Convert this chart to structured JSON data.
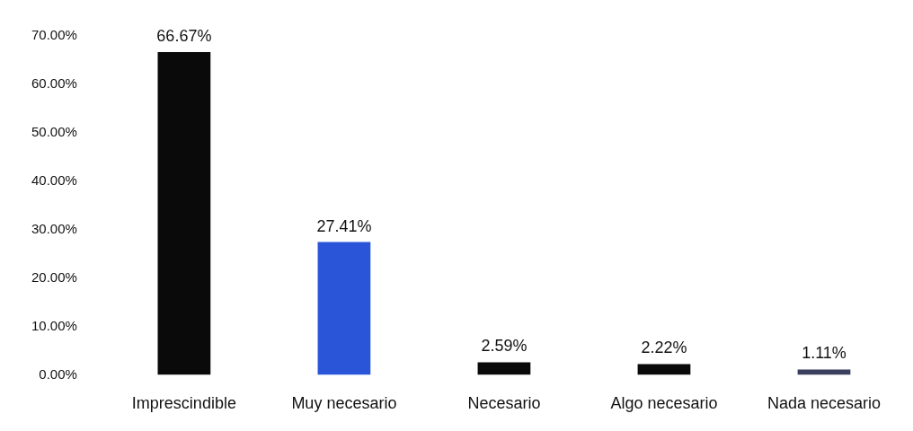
{
  "chart_data": {
    "type": "bar",
    "categories": [
      "Imprescindible",
      "Muy necesario",
      "Necesario",
      "Algo necesario",
      "Nada necesario"
    ],
    "values": [
      66.67,
      27.41,
      2.59,
      2.22,
      1.11
    ],
    "colors": [
      "#0a0a0a",
      "#2b55d8",
      "#0a0a0a",
      "#0a0a0a",
      "#3a3f5e"
    ],
    "value_labels": [
      "66.67%",
      "27.41%",
      "2.59%",
      "2.22%",
      "1.11%"
    ],
    "ylim": [
      0,
      70
    ],
    "yticks": [
      {
        "value": 0,
        "label": "0.00%"
      },
      {
        "value": 10,
        "label": "10.00%"
      },
      {
        "value": 20,
        "label": "20.00%"
      },
      {
        "value": 30,
        "label": "30.00%"
      },
      {
        "value": 40,
        "label": "40.00%"
      },
      {
        "value": 50,
        "label": "50.00%"
      },
      {
        "value": 60,
        "label": "60.00%"
      },
      {
        "value": 70,
        "label": "70.00%"
      }
    ],
    "grid": false,
    "legend": false
  }
}
